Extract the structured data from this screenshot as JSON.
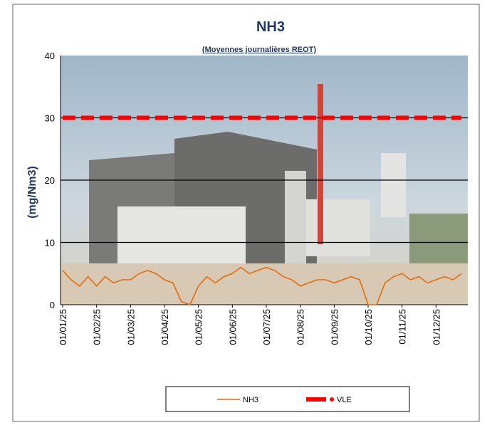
{
  "chart_data": {
    "type": "line",
    "title": "NH3",
    "subtitle": "(Moyennes journalières REOT)",
    "y_label": "(mg/Nm3)",
    "categories": [
      "01/01/25",
      null,
      null,
      null,
      "01/02/25",
      null,
      null,
      null,
      "01/03/25",
      null,
      null,
      null,
      "01/04/25",
      null,
      null,
      null,
      "01/05/25",
      null,
      null,
      null,
      "01/06/25",
      null,
      null,
      null,
      "01/07/25",
      null,
      null,
      null,
      "01/08/25",
      null,
      null,
      null,
      "01/09/25",
      null,
      null,
      null,
      "01/10/25",
      null,
      null,
      null,
      "01/11/25",
      null,
      null,
      null,
      "01/12/25",
      null,
      null,
      null
    ],
    "series": [
      {
        "name": "NH3",
        "color": "#e36c0a",
        "values": [
          5.5,
          4,
          3,
          4.5,
          3,
          4.5,
          3.5,
          4,
          4,
          5,
          5.5,
          5,
          4,
          3.5,
          0.5,
          0,
          3,
          4.5,
          3.5,
          4.5,
          5,
          6,
          5,
          5.5,
          6,
          5.5,
          4.5,
          4,
          3,
          3.5,
          4,
          4,
          3.5,
          4,
          4.5,
          4,
          0,
          0,
          3.5,
          4.5,
          5,
          4,
          4.5,
          3.5,
          4,
          4.5,
          4,
          5
        ]
      },
      {
        "name": "VLE",
        "color": "#ff0000",
        "values": [
          30,
          30,
          30,
          30,
          30,
          30,
          30,
          30,
          30,
          30,
          30,
          30,
          30,
          30,
          30,
          30,
          30,
          30,
          30,
          30,
          30,
          30,
          30,
          30,
          30,
          30,
          30,
          30,
          30,
          30,
          30,
          30,
          30,
          30,
          30,
          30,
          30,
          30,
          30,
          30,
          30,
          30,
          30,
          30,
          30,
          30,
          30,
          30
        ]
      }
    ],
    "ylim": [
      0,
      40
    ],
    "yticks": [
      0,
      10,
      20,
      30,
      40
    ],
    "grid": true,
    "legend": "bottom"
  }
}
